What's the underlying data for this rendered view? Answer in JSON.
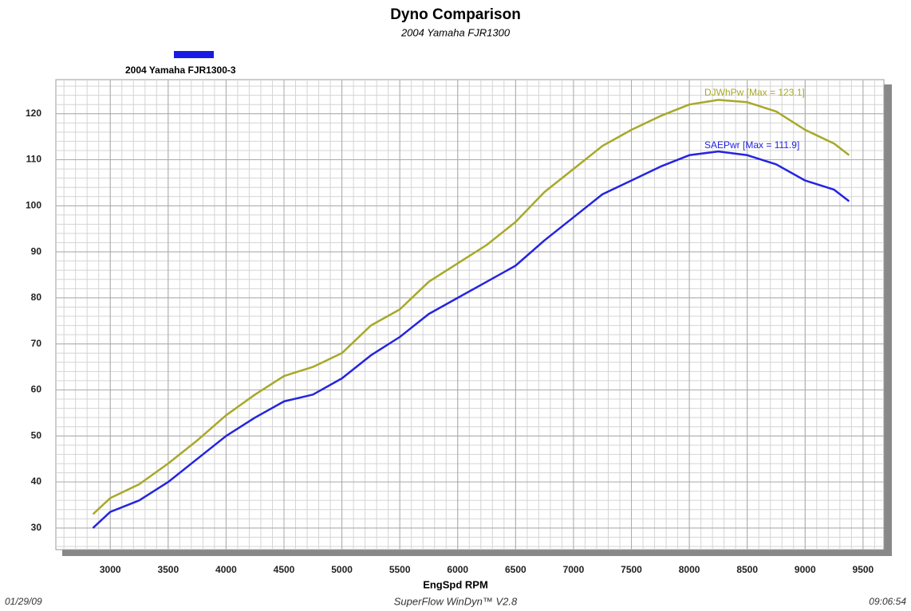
{
  "chart_data": {
    "type": "line",
    "title": "Dyno Comparison",
    "subtitle": "2004 Yamaha FJR1300",
    "xlabel": "EngSpd  RPM",
    "legend": {
      "label": "2004 Yamaha FJR1300-3",
      "color": "#1a1ae6"
    },
    "footer": {
      "left": "01/29/09",
      "center": "SuperFlow WinDyn™ V2.8",
      "right": "09:06:54"
    },
    "x": [
      2850,
      3000,
      3250,
      3500,
      3750,
      4000,
      4250,
      4500,
      4750,
      5000,
      5250,
      5500,
      5750,
      6000,
      6250,
      6500,
      6750,
      7000,
      7250,
      7500,
      7750,
      8000,
      8250,
      8500,
      8750,
      9000,
      9250,
      9380
    ],
    "series": [
      {
        "label": "DJWhPw [Max = 123.1]",
        "color": "#a8a82a",
        "values": [
          33,
          36.5,
          39.5,
          44,
          49,
          54.5,
          59,
          63,
          65,
          68,
          74,
          77.5,
          83.5,
          87.5,
          91.5,
          96.5,
          103,
          108,
          113,
          116.5,
          119.5,
          122,
          123,
          122.5,
          120.5,
          116.5,
          113.5,
          111
        ]
      },
      {
        "label": "SAEPwr [Max = 111.9]",
        "color": "#2424e0",
        "values": [
          30,
          33.5,
          36,
          40,
          45,
          50,
          54,
          57.5,
          59,
          62.5,
          67.5,
          71.5,
          76.5,
          80,
          83.5,
          87,
          92.5,
          97.5,
          102.5,
          105.5,
          108.5,
          111,
          111.8,
          111,
          109,
          105.5,
          103.5,
          101
        ]
      }
    ],
    "xlim": [
      2530,
      9680
    ],
    "ylim": [
      25.3,
      127.4
    ],
    "xticks": [
      3000,
      3500,
      4000,
      4500,
      5000,
      5500,
      6000,
      6500,
      7000,
      7500,
      8000,
      8500,
      9000,
      9500
    ],
    "yticks": [
      30,
      40,
      50,
      60,
      70,
      80,
      90,
      100,
      110,
      120
    ],
    "xminor": 100,
    "yminor": 2,
    "grid": true
  }
}
